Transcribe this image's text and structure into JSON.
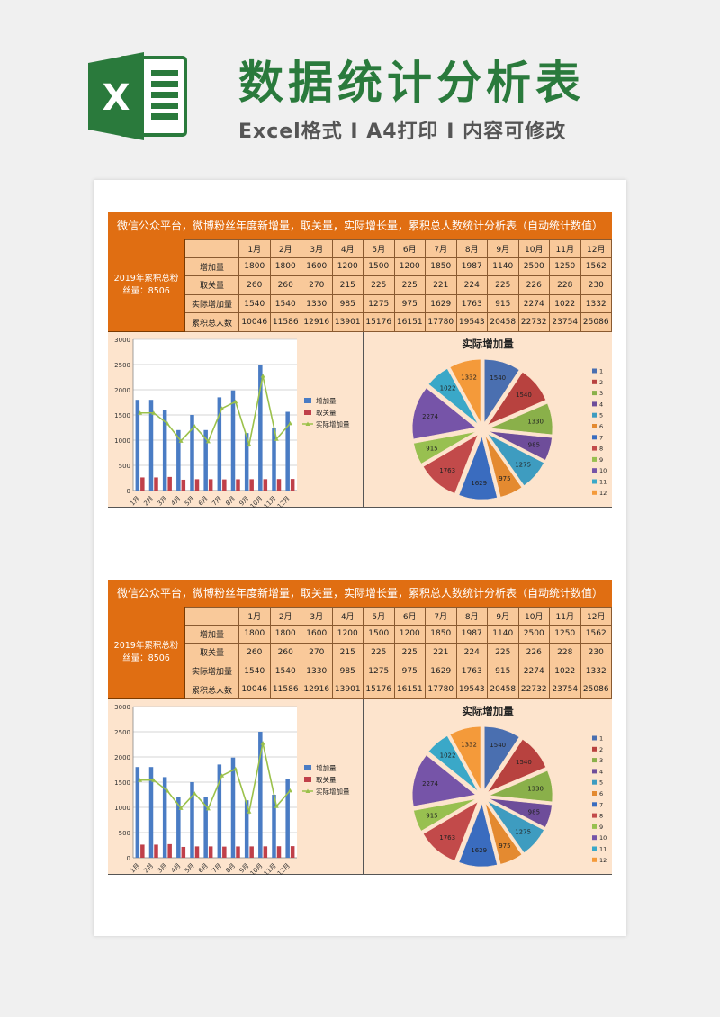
{
  "header": {
    "title": "数据统计分析表",
    "subtitle": "Excel格式 I A4打印 I 内容可修改",
    "logo_icon": "excel-logo-icon"
  },
  "report": {
    "banner": "微信公众平台，微博粉丝年度新增量，取关量，实际增长量，累积总人数统计分析表（自动统计数值）",
    "left_label": "2019年累积总粉丝量：8506",
    "months": [
      "1月",
      "2月",
      "3月",
      "4月",
      "5月",
      "6月",
      "7月",
      "8月",
      "9月",
      "10月",
      "11月",
      "12月"
    ],
    "rows": [
      {
        "label": "增加量",
        "values": [
          "1800",
          "1800",
          "1600",
          "1200",
          "1500",
          "1200",
          "1850",
          "1987",
          "1140",
          "2500",
          "1250",
          "1562"
        ]
      },
      {
        "label": "取关量",
        "values": [
          "260",
          "260",
          "270",
          "215",
          "225",
          "225",
          "221",
          "224",
          "225",
          "226",
          "228",
          "230"
        ]
      },
      {
        "label": "实际增加量",
        "values": [
          "1540",
          "1540",
          "1330",
          "985",
          "1275",
          "975",
          "1629",
          "1763",
          "915",
          "2274",
          "1022",
          "1332"
        ]
      },
      {
        "label": "累积总人数",
        "values": [
          "10046",
          "11586",
          "12916",
          "13901",
          "15176",
          "16151",
          "17780",
          "19543",
          "20458",
          "22732",
          "23754",
          "25086"
        ]
      }
    ]
  },
  "chart_data": [
    {
      "type": "bar",
      "categories": [
        "1月",
        "2月",
        "3月",
        "4月",
        "5月",
        "6月",
        "7月",
        "8月",
        "9月",
        "10月",
        "11月",
        "12月"
      ],
      "series": [
        {
          "name": "增加量",
          "type": "bar",
          "color": "#4a7cc4",
          "values": [
            1800,
            1800,
            1600,
            1200,
            1500,
            1200,
            1850,
            1987,
            1140,
            2500,
            1250,
            1562
          ]
        },
        {
          "name": "取关量",
          "type": "bar",
          "color": "#c0404a",
          "values": [
            260,
            260,
            270,
            215,
            225,
            225,
            221,
            224,
            225,
            226,
            228,
            230
          ]
        },
        {
          "name": "实际增加量",
          "type": "line",
          "color": "#9bc14a",
          "values": [
            1540,
            1540,
            1330,
            985,
            1275,
            975,
            1629,
            1763,
            915,
            2274,
            1022,
            1332
          ]
        }
      ],
      "yticks": [
        0,
        500,
        1000,
        1500,
        2000,
        2500,
        3000
      ],
      "ylim": [
        0,
        3000
      ],
      "grid": true,
      "legend": "right"
    },
    {
      "type": "pie",
      "title": "实际增加量",
      "labels": [
        "1",
        "2",
        "3",
        "4",
        "5",
        "6",
        "7",
        "8",
        "9",
        "10",
        "11",
        "12"
      ],
      "values": [
        1540,
        1540,
        1330,
        985,
        1275,
        975,
        1629,
        1763,
        915,
        2274,
        1022,
        1332
      ],
      "colors": [
        "#4a6fb0",
        "#b8423f",
        "#8ab04a",
        "#6e4d9a",
        "#3e9cc0",
        "#e48a30",
        "#3a6cbf",
        "#c24a4a",
        "#98c050",
        "#7654a8",
        "#3aa8c8",
        "#f49a3a"
      ],
      "legend": "right"
    }
  ]
}
